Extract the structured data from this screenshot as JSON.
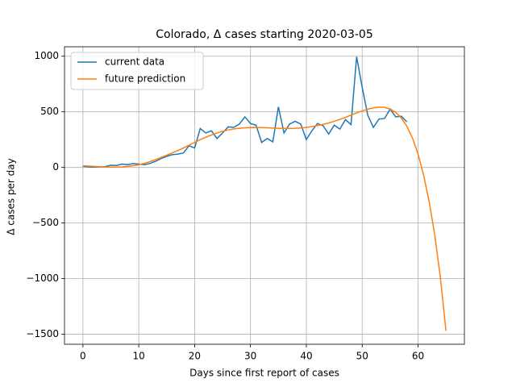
{
  "chart_data": {
    "type": "line",
    "title": "Colorado, Δ cases starting 2020-03-05",
    "xlabel": "Days since first report of cases",
    "ylabel": "Δ cases per day",
    "xlim": [
      -3.3,
      68.3
    ],
    "ylim": [
      -1590,
      1085
    ],
    "xticks": [
      0,
      10,
      20,
      30,
      40,
      50,
      60
    ],
    "yticks": [
      {
        "value": -1500,
        "label": "−1500"
      },
      {
        "value": -1000,
        "label": "−1000"
      },
      {
        "value": -500,
        "label": "−500"
      },
      0,
      500,
      1000
    ],
    "grid": true,
    "legend": "upper left",
    "series": [
      {
        "name": "current data",
        "color": "#1f77b4",
        "x": [
          0,
          1,
          2,
          3,
          4,
          5,
          6,
          7,
          8,
          9,
          10,
          11,
          12,
          13,
          14,
          15,
          16,
          17,
          18,
          19,
          20,
          21,
          22,
          23,
          24,
          25,
          26,
          27,
          28,
          29,
          30,
          31,
          32,
          33,
          34,
          35,
          36,
          37,
          38,
          39,
          40,
          41,
          42,
          43,
          44,
          45,
          46,
          47,
          48,
          49,
          50,
          51,
          52,
          53,
          54,
          55,
          56,
          57,
          58
        ],
        "values": [
          10,
          5,
          3,
          5,
          8,
          20,
          18,
          30,
          25,
          35,
          30,
          25,
          35,
          55,
          80,
          100,
          115,
          120,
          130,
          195,
          175,
          350,
          310,
          330,
          260,
          310,
          365,
          360,
          390,
          455,
          395,
          380,
          225,
          260,
          230,
          545,
          310,
          390,
          415,
          390,
          250,
          330,
          395,
          375,
          300,
          380,
          345,
          430,
          385,
          995,
          720,
          470,
          360,
          435,
          440,
          525,
          455,
          460,
          410
        ]
      },
      {
        "name": "future prediction",
        "color": "#ff7f0e",
        "x": [
          0,
          1,
          2,
          3,
          4,
          5,
          6,
          7,
          8,
          9,
          10,
          11,
          12,
          13,
          14,
          15,
          16,
          17,
          18,
          19,
          20,
          21,
          22,
          23,
          24,
          25,
          26,
          27,
          28,
          29,
          30,
          31,
          32,
          33,
          34,
          35,
          36,
          37,
          38,
          39,
          40,
          41,
          42,
          43,
          44,
          45,
          46,
          47,
          48,
          49,
          50,
          51,
          52,
          53,
          54,
          55,
          56,
          57,
          58,
          59,
          60,
          61,
          62,
          63,
          64,
          65
        ],
        "values": [
          15,
          12,
          9,
          6,
          4,
          3,
          3,
          5,
          9,
          16,
          25,
          37,
          52,
          70,
          90,
          110,
          130,
          152,
          175,
          200,
          225,
          250,
          272,
          292,
          310,
          325,
          337,
          346,
          352,
          356,
          358,
          359,
          358,
          356,
          354,
          352,
          351,
          351,
          352,
          355,
          360,
          367,
          376,
          387,
          400,
          415,
          432,
          450,
          470,
          490,
          508,
          524,
          536,
          542,
          540,
          525,
          495,
          445,
          370,
          265,
          120,
          -70,
          -310,
          -610,
          -990,
          -1470
        ]
      }
    ]
  }
}
